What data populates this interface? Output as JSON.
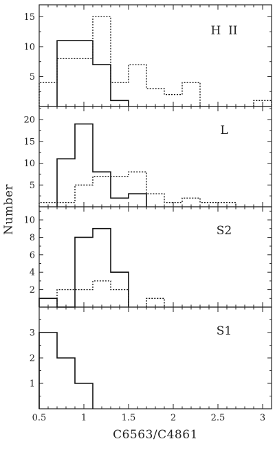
{
  "chart_data": {
    "type": "histogram",
    "xlabel": "C6563/C4861",
    "ylabel": "Number",
    "xlim": [
      0.5,
      3.1
    ],
    "x_ticks": [
      0.5,
      1,
      1.5,
      2,
      2.5,
      3
    ],
    "x_tick_labels": [
      "0.5",
      "1",
      "1.5",
      "2",
      "2.5",
      "3"
    ],
    "grid": false,
    "panels": [
      {
        "label": "H  II",
        "ylim": [
          0,
          17
        ],
        "y_ticks": [
          5,
          10,
          15
        ],
        "y_tick_labels": [
          "5",
          "10",
          "15"
        ],
        "series": [
          {
            "style": "solid",
            "bins": [
              [
                0.7,
                0.9,
                11
              ],
              [
                0.9,
                1.1,
                11
              ],
              [
                1.1,
                1.3,
                7
              ],
              [
                1.3,
                1.5,
                1
              ]
            ]
          },
          {
            "style": "dotted",
            "bins": [
              [
                0.5,
                0.7,
                4
              ],
              [
                0.7,
                0.9,
                8
              ],
              [
                0.9,
                1.1,
                8
              ],
              [
                1.1,
                1.3,
                15
              ],
              [
                1.3,
                1.5,
                4
              ],
              [
                1.5,
                1.7,
                7
              ],
              [
                1.7,
                1.9,
                3
              ],
              [
                1.9,
                2.1,
                2
              ],
              [
                2.1,
                2.3,
                4
              ],
              [
                2.9,
                3.1,
                1
              ]
            ]
          }
        ]
      },
      {
        "label": "L",
        "ylim": [
          0,
          23
        ],
        "y_ticks": [
          5,
          10,
          15,
          20
        ],
        "y_tick_labels": [
          "5",
          "10",
          "15",
          "20"
        ],
        "series": [
          {
            "style": "solid",
            "bins": [
              [
                0.7,
                0.9,
                11
              ],
              [
                0.9,
                1.1,
                19
              ],
              [
                1.1,
                1.3,
                8
              ],
              [
                1.3,
                1.5,
                2
              ],
              [
                1.5,
                1.7,
                3
              ]
            ]
          },
          {
            "style": "dotted",
            "bins": [
              [
                0.5,
                0.7,
                1
              ],
              [
                0.7,
                0.9,
                1
              ],
              [
                0.9,
                1.1,
                5
              ],
              [
                1.1,
                1.3,
                7
              ],
              [
                1.3,
                1.5,
                7
              ],
              [
                1.5,
                1.7,
                8
              ],
              [
                1.7,
                1.9,
                3
              ],
              [
                1.9,
                2.1,
                1
              ],
              [
                2.1,
                2.3,
                2
              ],
              [
                2.3,
                2.5,
                1
              ],
              [
                2.5,
                2.7,
                1
              ]
            ]
          }
        ]
      },
      {
        "label": "S2",
        "ylim": [
          0,
          11.5
        ],
        "y_ticks": [
          2,
          4,
          6,
          8,
          10
        ],
        "y_tick_labels": [
          "2",
          "4",
          "6",
          "8",
          "10"
        ],
        "series": [
          {
            "style": "solid",
            "bins": [
              [
                0.5,
                0.7,
                1
              ],
              [
                0.7,
                0.9,
                0
              ],
              [
                0.9,
                1.1,
                8
              ],
              [
                1.1,
                1.3,
                9
              ],
              [
                1.3,
                1.5,
                4
              ]
            ]
          },
          {
            "style": "dotted",
            "bins": [
              [
                0.7,
                0.9,
                2
              ],
              [
                0.9,
                1.1,
                2
              ],
              [
                1.1,
                1.3,
                3
              ],
              [
                1.3,
                1.5,
                2
              ],
              [
                1.7,
                1.9,
                1
              ]
            ]
          }
        ]
      },
      {
        "label": "S1",
        "ylim": [
          0,
          4
        ],
        "y_ticks": [
          1,
          2,
          3
        ],
        "y_tick_labels": [
          "1",
          "2",
          "3"
        ],
        "series": [
          {
            "style": "solid",
            "bins": [
              [
                0.5,
                0.7,
                3
              ],
              [
                0.7,
                0.9,
                2
              ],
              [
                0.9,
                1.1,
                1
              ]
            ]
          }
        ]
      }
    ]
  }
}
